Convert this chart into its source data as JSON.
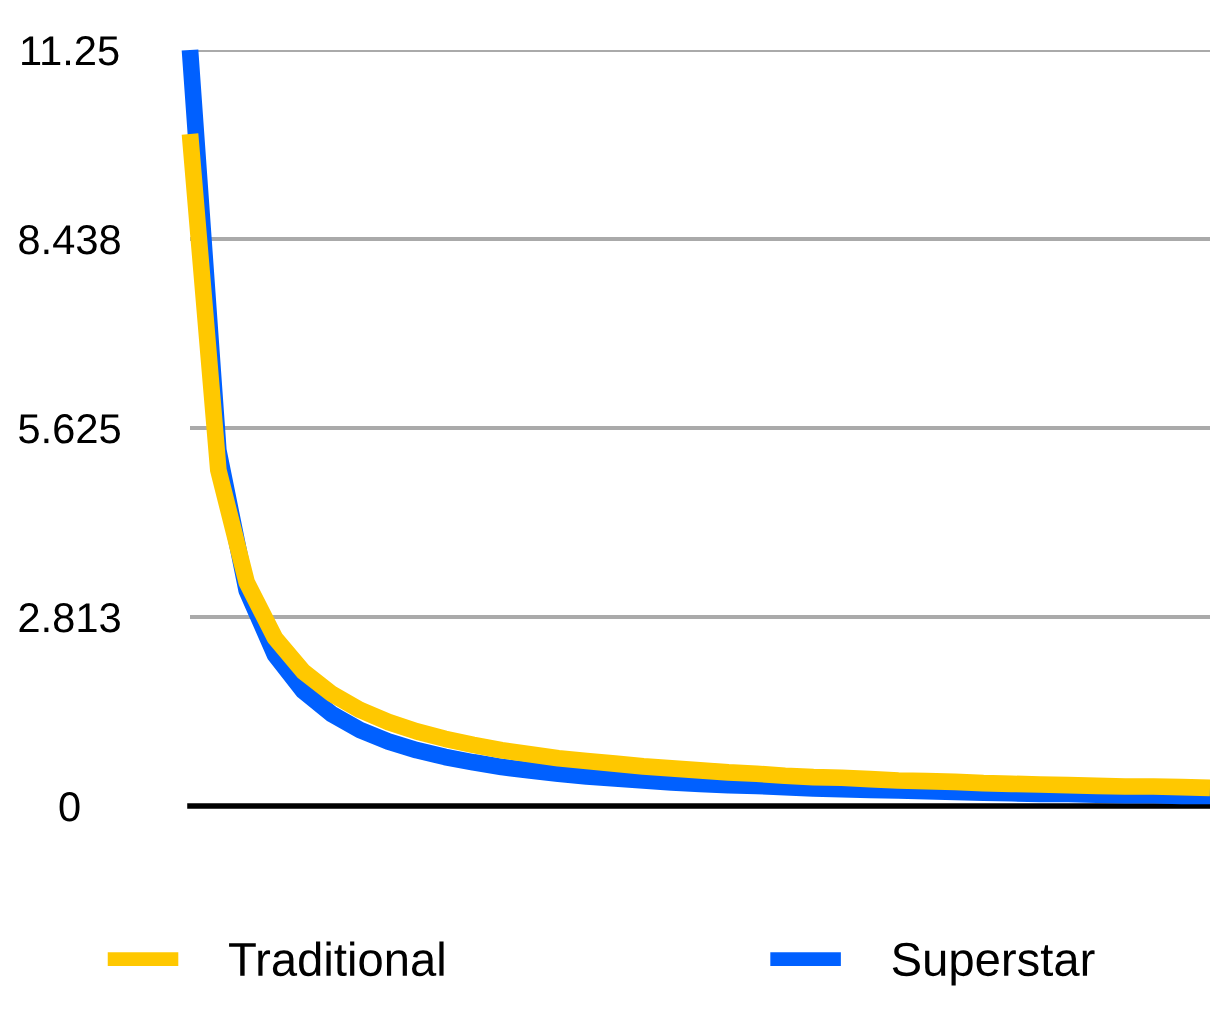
{
  "chart_data": {
    "type": "line",
    "categories": [
      null,
      null,
      null,
      null,
      null,
      null,
      null,
      null,
      null,
      null,
      null,
      null,
      null,
      null,
      null,
      null,
      null,
      null,
      null,
      null,
      null,
      null,
      null,
      null,
      null,
      null,
      null,
      null,
      null,
      null,
      null,
      null,
      null,
      null,
      null,
      null,
      null
    ],
    "series": [
      {
        "name": "Traditional",
        "color": "#ffc800",
        "values": [
          10,
          5,
          3.33,
          2.5,
          2,
          1.67,
          1.43,
          1.25,
          1.11,
          1,
          0.91,
          0.83,
          0.77,
          0.71,
          0.67,
          0.63,
          0.59,
          0.56,
          0.53,
          0.5,
          0.48,
          0.45,
          0.43,
          0.42,
          0.4,
          0.38,
          0.37,
          0.36,
          0.34,
          0.33,
          0.32,
          0.31,
          0.3,
          0.29,
          0.29,
          0.28,
          0.27
        ]
      },
      {
        "name": "Superstar",
        "color": "#0060ff",
        "values": [
          11.25,
          5.29,
          3.21,
          2.25,
          1.71,
          1.37,
          1.13,
          0.96,
          0.83,
          0.73,
          0.65,
          0.58,
          0.53,
          0.48,
          0.44,
          0.41,
          0.38,
          0.35,
          0.33,
          0.31,
          0.3,
          0.28,
          0.26,
          0.25,
          0.24,
          0.23,
          0.22,
          0.21,
          0.2,
          0.19,
          0.18,
          0.18,
          0.17,
          0.16,
          0.16,
          0.15,
          0.15
        ]
      }
    ],
    "ylim": [
      0,
      11.25
    ],
    "yticks": [
      0,
      2.813,
      5.625,
      8.438,
      11.25
    ],
    "grid": "y",
    "legend": "bottom",
    "marker": "none",
    "line_style": "solid"
  }
}
